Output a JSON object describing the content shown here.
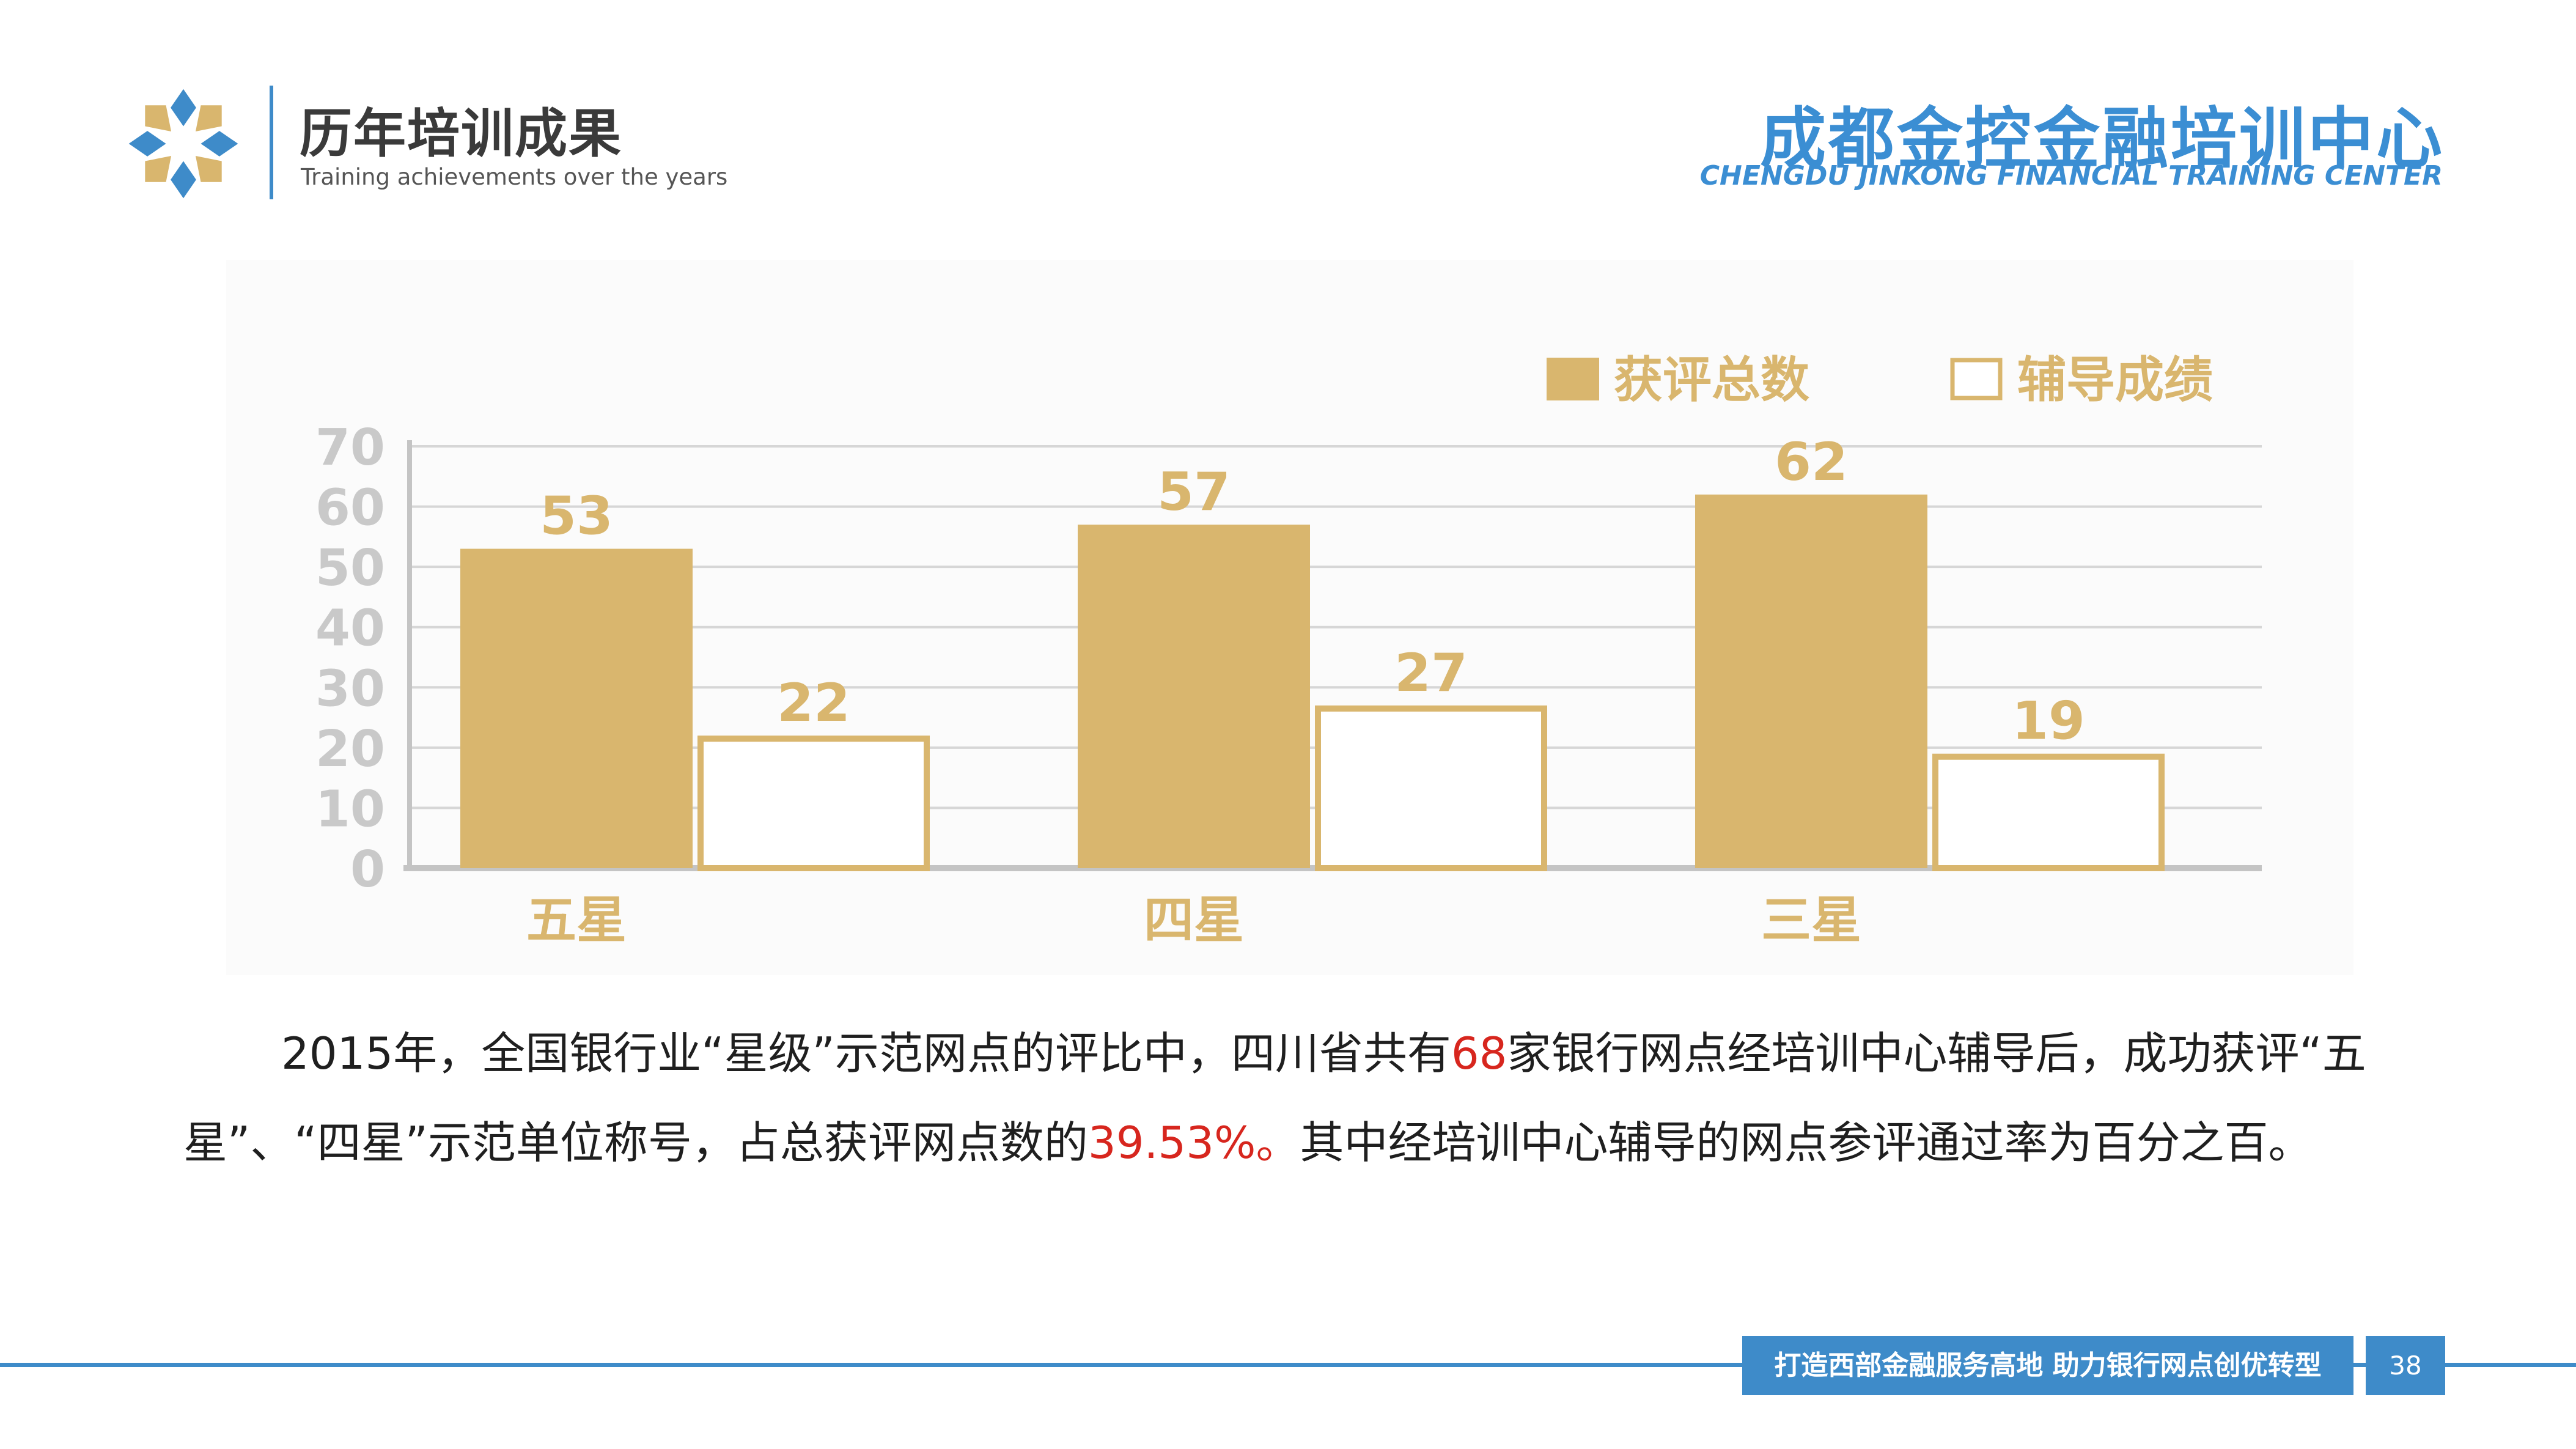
{
  "header": {
    "title": "历年培训成果",
    "subtitle": "Training achievements over the years",
    "org_name": "成都金控金融培训中心",
    "org_name_en": "CHENGDU JINKONG FINANCIAL TRAINING CENTER"
  },
  "colors": {
    "accent_blue": "#3e8bc9",
    "bar_gold": "#d9b66e",
    "highlight_red": "#d7261e"
  },
  "chart_data": {
    "type": "bar",
    "categories": [
      "五星",
      "四星",
      "三星"
    ],
    "series": [
      {
        "name": "获评总数",
        "values": [
          53,
          57,
          62
        ],
        "style": "filled"
      },
      {
        "name": "辅导成绩",
        "values": [
          22,
          27,
          19
        ],
        "style": "outline"
      }
    ],
    "ylim": [
      0,
      70
    ],
    "yticks": [
      0,
      10,
      20,
      30,
      40,
      50,
      60,
      70
    ],
    "grid": true,
    "legend_position": "top-right",
    "data_labels": true
  },
  "body": {
    "seg1": "2015年，全国银行业“星级”示范网点的评比中，四川省共有",
    "num1": "68",
    "seg2": "家银行网点经培训中心辅导后，成功获评“五星”、“四星”示范单位称号，占总获评网点数的",
    "num2": "39.53%。",
    "seg3": "其中经培训中心辅导的网点参评通过率为百分之百。"
  },
  "footer": {
    "slogan": "打造西部金融服务高地  助力银行网点创优转型",
    "page_number": "38"
  }
}
